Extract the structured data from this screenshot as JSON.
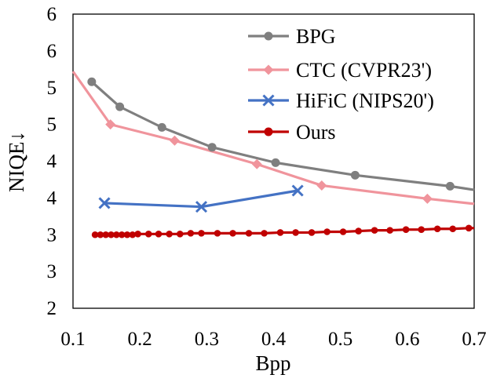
{
  "chart_data": {
    "type": "line",
    "xlabel": "Bpp",
    "ylabel": "NIQE↓",
    "xlim": [
      0.1,
      0.7
    ],
    "ylim": [
      2,
      6
    ],
    "x_ticks": [
      "0.1",
      "0.2",
      "0.3",
      "0.4",
      "0.5",
      "0.6",
      "0.7"
    ],
    "y_ticks": [
      "2",
      "3",
      "3",
      "4",
      "4",
      "5",
      "5",
      "6",
      "6"
    ],
    "grid": false,
    "legend_position": "top-right",
    "series": [
      {
        "name": "BPG",
        "color": "#7f7f7f",
        "marker": "circle",
        "x": [
          0.128,
          0.17,
          0.233,
          0.308,
          0.403,
          0.522,
          0.664,
          0.7
        ],
        "y": [
          5.08,
          4.74,
          4.46,
          4.19,
          3.98,
          3.81,
          3.66,
          3.61
        ]
      },
      {
        "name": "CTC (CVPR23')",
        "color": "#f0949c",
        "marker": "diamond",
        "x": [
          0.1,
          0.156,
          0.252,
          0.375,
          0.472,
          0.63,
          0.7
        ],
        "y": [
          5.22,
          4.5,
          4.28,
          3.96,
          3.67,
          3.49,
          3.42
        ]
      },
      {
        "name": "HiFiC (NIPS20')",
        "color": "#4472c4",
        "marker": "x",
        "x": [
          0.147,
          0.292,
          0.436
        ],
        "y": [
          3.43,
          3.38,
          3.6
        ]
      },
      {
        "name": "Ours",
        "color": "#c00000",
        "marker": "circle",
        "x": [
          0.133,
          0.141,
          0.149,
          0.157,
          0.165,
          0.173,
          0.181,
          0.189,
          0.197,
          0.213,
          0.228,
          0.244,
          0.26,
          0.276,
          0.292,
          0.316,
          0.339,
          0.363,
          0.386,
          0.41,
          0.433,
          0.457,
          0.48,
          0.504,
          0.527,
          0.551,
          0.574,
          0.598,
          0.621,
          0.645,
          0.668,
          0.692,
          0.7
        ],
        "y": [
          3.0,
          3.0,
          3.0,
          3.0,
          3.0,
          3.0,
          3.0,
          3.0,
          3.01,
          3.01,
          3.01,
          3.01,
          3.01,
          3.02,
          3.02,
          3.02,
          3.02,
          3.02,
          3.02,
          3.03,
          3.03,
          3.03,
          3.04,
          3.04,
          3.05,
          3.06,
          3.06,
          3.07,
          3.07,
          3.08,
          3.08,
          3.09,
          3.09
        ]
      }
    ]
  }
}
